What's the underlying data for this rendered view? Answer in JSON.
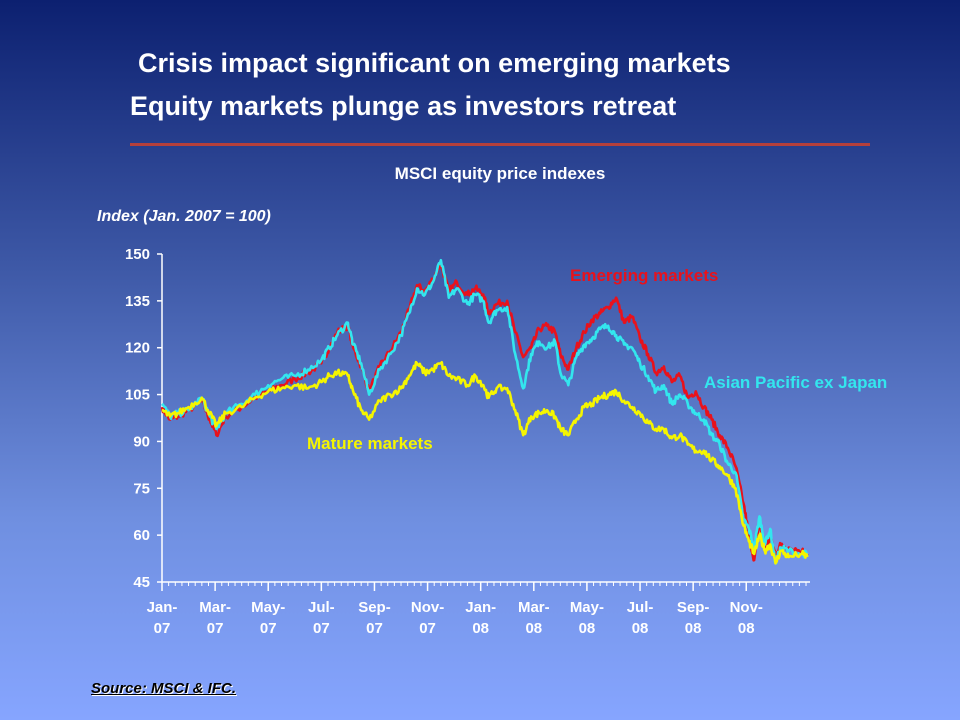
{
  "header": {
    "title_line1": "Crisis impact significant on emerging markets",
    "title_line2": "Equity markets plunge as investors retreat"
  },
  "footer": {
    "source": "Source: MSCI & IFC."
  },
  "colors": {
    "emerging": "#e8121c",
    "asia": "#33e6ee",
    "mature": "#f5f500",
    "rule": "#b5403c"
  },
  "chart_data": {
    "type": "line",
    "title": "MSCI equity price indexes",
    "ylabel": "Index (Jan. 2007 = 100)",
    "ylim": [
      45,
      150
    ],
    "yticks": [
      45,
      60,
      75,
      90,
      105,
      120,
      135,
      150
    ],
    "xticks": [
      {
        "line1": "Jan-",
        "line2": "07",
        "x": 0
      },
      {
        "line1": "Mar-",
        "line2": "07",
        "x": 2
      },
      {
        "line1": "May-",
        "line2": "07",
        "x": 4
      },
      {
        "line1": "Jul-",
        "line2": "07",
        "x": 6
      },
      {
        "line1": "Sep-",
        "line2": "07",
        "x": 8
      },
      {
        "line1": "Nov-",
        "line2": "07",
        "x": 10
      },
      {
        "line1": "Jan-",
        "line2": "08",
        "x": 12
      },
      {
        "line1": "Mar-",
        "line2": "08",
        "x": 14
      },
      {
        "line1": "May-",
        "line2": "08",
        "x": 16
      },
      {
        "line1": "Jul-",
        "line2": "08",
        "x": 18
      },
      {
        "line1": "Sep-",
        "line2": "08",
        "x": 20
      },
      {
        "line1": "Nov-",
        "line2": "08",
        "x": 22
      }
    ],
    "xlim": [
      0,
      24.4
    ],
    "series": [
      {
        "name": "Emerging markets",
        "color": "#e8121c",
        "points": [
          [
            0,
            101
          ],
          [
            0.3,
            97
          ],
          [
            0.6,
            98
          ],
          [
            1,
            100
          ],
          [
            1.5,
            103
          ],
          [
            1.8,
            97
          ],
          [
            2.05,
            92
          ],
          [
            2.4,
            98
          ],
          [
            3,
            101
          ],
          [
            3.5,
            104
          ],
          [
            4,
            106
          ],
          [
            4.5,
            108
          ],
          [
            5,
            110
          ],
          [
            5.5,
            112
          ],
          [
            6,
            115
          ],
          [
            6.3,
            120
          ],
          [
            6.6,
            125
          ],
          [
            7,
            127
          ],
          [
            7.2,
            120
          ],
          [
            7.5,
            114
          ],
          [
            7.8,
            106
          ],
          [
            8.2,
            114
          ],
          [
            8.6,
            119
          ],
          [
            9,
            125
          ],
          [
            9.3,
            132
          ],
          [
            9.6,
            140
          ],
          [
            9.9,
            138
          ],
          [
            10.2,
            142
          ],
          [
            10.5,
            147
          ],
          [
            10.8,
            138
          ],
          [
            11.1,
            141
          ],
          [
            11.5,
            137
          ],
          [
            11.8,
            139
          ],
          [
            12.1,
            137
          ],
          [
            12.3,
            131
          ],
          [
            12.6,
            134
          ],
          [
            13,
            135
          ],
          [
            13.3,
            125
          ],
          [
            13.6,
            117
          ],
          [
            13.9,
            120
          ],
          [
            14.2,
            126
          ],
          [
            14.5,
            127
          ],
          [
            14.8,
            125
          ],
          [
            15,
            118
          ],
          [
            15.3,
            113
          ],
          [
            15.6,
            120
          ],
          [
            15.9,
            125
          ],
          [
            16.2,
            129
          ],
          [
            16.5,
            131
          ],
          [
            16.8,
            133
          ],
          [
            17.1,
            136
          ],
          [
            17.4,
            128
          ],
          [
            17.7,
            130
          ],
          [
            18,
            123
          ],
          [
            18.3,
            118
          ],
          [
            18.6,
            112
          ],
          [
            18.9,
            114
          ],
          [
            19.2,
            109
          ],
          [
            19.5,
            111
          ],
          [
            19.8,
            104
          ],
          [
            20.1,
            106
          ],
          [
            20.4,
            101
          ],
          [
            20.7,
            97
          ],
          [
            21,
            92
          ],
          [
            21.3,
            88
          ],
          [
            21.6,
            82
          ],
          [
            21.9,
            70
          ],
          [
            22.1,
            60
          ],
          [
            22.3,
            52
          ],
          [
            22.5,
            64
          ],
          [
            22.7,
            56
          ],
          [
            22.9,
            59
          ],
          [
            23.1,
            54
          ],
          [
            23.3,
            57
          ],
          [
            23.6,
            56
          ],
          [
            24.1,
            55
          ],
          [
            24.3,
            54
          ]
        ]
      },
      {
        "name": "Asian Pacific ex Japan",
        "color": "#33e6ee",
        "points": [
          [
            0,
            102
          ],
          [
            0.3,
            98
          ],
          [
            0.6,
            99
          ],
          [
            1,
            100
          ],
          [
            1.5,
            104
          ],
          [
            1.8,
            98
          ],
          [
            2.05,
            94
          ],
          [
            2.4,
            99
          ],
          [
            3,
            102
          ],
          [
            3.5,
            105
          ],
          [
            4,
            108
          ],
          [
            4.5,
            110
          ],
          [
            5,
            111
          ],
          [
            5.5,
            113
          ],
          [
            6,
            116
          ],
          [
            6.3,
            120
          ],
          [
            6.6,
            124
          ],
          [
            7,
            128
          ],
          [
            7.2,
            121
          ],
          [
            7.5,
            115
          ],
          [
            7.8,
            105
          ],
          [
            8.2,
            113
          ],
          [
            8.6,
            118
          ],
          [
            9,
            124
          ],
          [
            9.3,
            131
          ],
          [
            9.6,
            139
          ],
          [
            9.9,
            137
          ],
          [
            10.2,
            141
          ],
          [
            10.5,
            148
          ],
          [
            10.8,
            136
          ],
          [
            11.1,
            139
          ],
          [
            11.5,
            134
          ],
          [
            11.8,
            137
          ],
          [
            12.1,
            135
          ],
          [
            12.3,
            128
          ],
          [
            12.6,
            132
          ],
          [
            13,
            133
          ],
          [
            13.3,
            118
          ],
          [
            13.6,
            107
          ],
          [
            13.9,
            118
          ],
          [
            14.2,
            122
          ],
          [
            14.5,
            120
          ],
          [
            14.8,
            122
          ],
          [
            15,
            112
          ],
          [
            15.3,
            108
          ],
          [
            15.6,
            117
          ],
          [
            15.9,
            121
          ],
          [
            16.2,
            123
          ],
          [
            16.5,
            126
          ],
          [
            16.8,
            127
          ],
          [
            17.1,
            124
          ],
          [
            17.4,
            121
          ],
          [
            17.7,
            120
          ],
          [
            18,
            115
          ],
          [
            18.3,
            111
          ],
          [
            18.6,
            106
          ],
          [
            18.9,
            108
          ],
          [
            19.2,
            102
          ],
          [
            19.5,
            105
          ],
          [
            19.8,
            102
          ],
          [
            20.1,
            99
          ],
          [
            20.4,
            97
          ],
          [
            20.7,
            92
          ],
          [
            21,
            89
          ],
          [
            21.3,
            83
          ],
          [
            21.6,
            80
          ],
          [
            21.9,
            65
          ],
          [
            22.1,
            62
          ],
          [
            22.3,
            56
          ],
          [
            22.5,
            66
          ],
          [
            22.7,
            57
          ],
          [
            22.9,
            62
          ],
          [
            23.1,
            51
          ],
          [
            23.3,
            56
          ],
          [
            23.6,
            55
          ],
          [
            24.1,
            54
          ],
          [
            24.3,
            54
          ]
        ]
      },
      {
        "name": "Mature markets",
        "color": "#f5f500",
        "points": [
          [
            0,
            100
          ],
          [
            0.3,
            98
          ],
          [
            0.6,
            99
          ],
          [
            1,
            101
          ],
          [
            1.5,
            104
          ],
          [
            1.8,
            99
          ],
          [
            2.05,
            95
          ],
          [
            2.4,
            99
          ],
          [
            3,
            101
          ],
          [
            3.5,
            104
          ],
          [
            4,
            106
          ],
          [
            4.5,
            107
          ],
          [
            5,
            108
          ],
          [
            5.5,
            107
          ],
          [
            6,
            109
          ],
          [
            6.3,
            111
          ],
          [
            6.6,
            112
          ],
          [
            7,
            111
          ],
          [
            7.2,
            106
          ],
          [
            7.5,
            100
          ],
          [
            7.8,
            97
          ],
          [
            8.2,
            103
          ],
          [
            8.6,
            105
          ],
          [
            9,
            107
          ],
          [
            9.3,
            111
          ],
          [
            9.6,
            115
          ],
          [
            9.9,
            112
          ],
          [
            10.2,
            113
          ],
          [
            10.5,
            115
          ],
          [
            10.8,
            111
          ],
          [
            11.1,
            110
          ],
          [
            11.5,
            108
          ],
          [
            11.8,
            111
          ],
          [
            12.1,
            108
          ],
          [
            12.3,
            104
          ],
          [
            12.6,
            107
          ],
          [
            13,
            107
          ],
          [
            13.3,
            100
          ],
          [
            13.6,
            92
          ],
          [
            13.9,
            98
          ],
          [
            14.2,
            99
          ],
          [
            14.5,
            100
          ],
          [
            14.8,
            98
          ],
          [
            15,
            94
          ],
          [
            15.3,
            92
          ],
          [
            15.6,
            97
          ],
          [
            15.9,
            101
          ],
          [
            16.2,
            102
          ],
          [
            16.5,
            104
          ],
          [
            16.8,
            105
          ],
          [
            17.1,
            106
          ],
          [
            17.4,
            103
          ],
          [
            17.7,
            101
          ],
          [
            18,
            99
          ],
          [
            18.3,
            96
          ],
          [
            18.6,
            94
          ],
          [
            18.9,
            94
          ],
          [
            19.2,
            91
          ],
          [
            19.5,
            92
          ],
          [
            19.8,
            89
          ],
          [
            20.1,
            87
          ],
          [
            20.4,
            87
          ],
          [
            20.7,
            84
          ],
          [
            21,
            82
          ],
          [
            21.3,
            79
          ],
          [
            21.6,
            75
          ],
          [
            21.9,
            63
          ],
          [
            22.1,
            58
          ],
          [
            22.3,
            54
          ],
          [
            22.5,
            60
          ],
          [
            22.7,
            55
          ],
          [
            22.9,
            57
          ],
          [
            23.1,
            51
          ],
          [
            23.3,
            55
          ],
          [
            23.6,
            53
          ],
          [
            24.1,
            54
          ],
          [
            24.3,
            53
          ]
        ]
      }
    ]
  }
}
